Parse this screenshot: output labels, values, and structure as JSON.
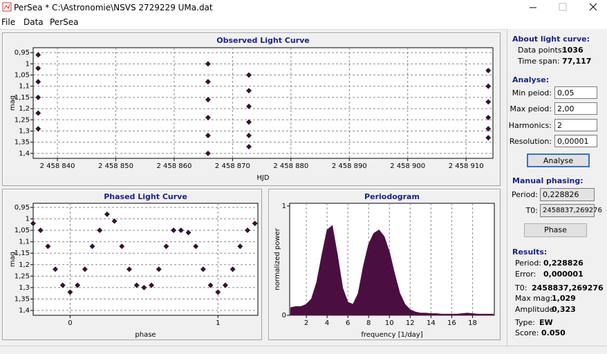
{
  "window": {
    "title": "PerSea * C:\\Astronomie\\NSVS 2729229 UMa.dat"
  },
  "menu": [
    "File",
    "Data",
    "PerSea"
  ],
  "chart_data": [
    {
      "type": "scatter",
      "title": "Observed Light Curve",
      "x_label": "HJD",
      "y_label": "mag",
      "x": [
        2458836.7,
        2458836.7,
        2458836.7,
        2458836.7,
        2458836.7,
        2458836.7,
        2458865.8,
        2458865.8,
        2458865.8,
        2458865.8,
        2458865.8,
        2458865.8,
        2458872.8,
        2458872.8,
        2458872.8,
        2458872.8,
        2458872.8,
        2458872.8,
        2458913.8,
        2458913.8,
        2458913.8,
        2458913.8,
        2458913.8,
        2458913.8
      ],
      "values": [
        0.96,
        1.02,
        1.08,
        1.15,
        1.22,
        1.29,
        1.0,
        1.08,
        1.16,
        1.24,
        1.32,
        1.4,
        1.05,
        1.12,
        1.19,
        1.26,
        1.32,
        1.37,
        1.03,
        1.1,
        1.17,
        1.24,
        1.29,
        1.33
      ],
      "color": "#3a1230",
      "xlim": [
        2458835.85,
        2458914.6
      ],
      "xticks": [
        {
          "value": 2458840,
          "label": "2 458 840"
        },
        {
          "value": 2458850,
          "label": "2 458 850"
        },
        {
          "value": 2458860,
          "label": "2 458 860"
        },
        {
          "value": 2458870,
          "label": "2 458 870"
        },
        {
          "value": 2458880,
          "label": "2 458 880"
        },
        {
          "value": 2458890,
          "label": "2 458 890"
        },
        {
          "value": 2458900,
          "label": "2 458 900"
        },
        {
          "value": 2458910,
          "label": "2 458 910"
        }
      ],
      "ylim": [
        0.928,
        1.422
      ],
      "y_inverted": true,
      "yticks": [
        {
          "value": 0.95,
          "label": "0,95"
        },
        1,
        {
          "value": 1.05,
          "label": "1,05"
        },
        {
          "value": 1.1,
          "label": "1,1"
        },
        {
          "value": 1.15,
          "label": "1,15"
        },
        {
          "value": 1.2,
          "label": "1,2"
        },
        {
          "value": 1.25,
          "label": "1,25"
        },
        {
          "value": 1.3,
          "label": "1,3"
        },
        {
          "value": 1.35,
          "label": "1,35"
        },
        {
          "value": 1.4,
          "label": "1,4"
        }
      ],
      "grid": "both"
    },
    {
      "type": "scatter",
      "title": "Phased Light Curve",
      "x_label": "phase",
      "y_label": "mag",
      "x": [
        -0.25,
        -0.2,
        -0.15,
        -0.1,
        -0.05,
        0,
        0.05,
        0.1,
        0.15,
        0.2,
        0.25,
        0.3,
        0.35,
        0.4,
        0.45,
        0.5,
        0.55,
        0.6,
        0.65,
        0.7,
        0.75,
        0.8,
        0.85,
        0.9,
        0.95,
        1,
        1.05,
        1.1,
        1.15,
        1.2,
        1.25
      ],
      "values": [
        1.02,
        1.05,
        1.12,
        1.22,
        1.29,
        1.32,
        1.29,
        1.22,
        1.12,
        1.05,
        0.98,
        1.01,
        1.12,
        1.22,
        1.29,
        1.3,
        1.29,
        1.22,
        1.12,
        1.05,
        1.05,
        1.06,
        1.12,
        1.22,
        1.29,
        1.32,
        1.29,
        1.22,
        1.12,
        1.05,
        1.02
      ],
      "color": "#3a1230",
      "xlim": [
        -0.25,
        1.27
      ],
      "xticks": [
        0,
        1
      ],
      "ylim": [
        0.932,
        1.421
      ],
      "y_inverted": true,
      "yticks": [
        {
          "value": 0.95,
          "label": "0,95"
        },
        1,
        {
          "value": 1.05,
          "label": "1,05"
        },
        {
          "value": 1.1,
          "label": "1,1"
        },
        {
          "value": 1.15,
          "label": "1,15"
        },
        {
          "value": 1.2,
          "label": "1,2"
        },
        {
          "value": 1.25,
          "label": "1,25"
        },
        {
          "value": 1.3,
          "label": "1,3"
        },
        {
          "value": 1.35,
          "label": "1,35"
        },
        {
          "value": 1.4,
          "label": "1,4"
        }
      ],
      "grid": "both"
    },
    {
      "type": "area",
      "title": "Periodogram",
      "x_label": "frequency [1/day]",
      "y_label": "normalized power",
      "x": [
        0.5,
        1,
        1.5,
        2,
        2.5,
        3,
        3.5,
        4,
        4.5,
        5,
        5.5,
        6,
        6.5,
        7,
        7.5,
        8,
        8.5,
        9,
        9.5,
        10,
        10.5,
        11,
        11.5,
        12,
        12.5,
        13,
        13.5,
        14,
        14.5,
        15,
        15.5,
        16,
        16.5,
        17,
        17.5,
        18,
        18.5,
        19,
        19.5,
        20
      ],
      "values": [
        0.07,
        0.08,
        0.08,
        0.1,
        0.15,
        0.3,
        0.55,
        0.78,
        0.82,
        0.55,
        0.25,
        0.12,
        0.1,
        0.2,
        0.45,
        0.65,
        0.75,
        0.78,
        0.72,
        0.58,
        0.38,
        0.2,
        0.1,
        0.05,
        0.03,
        0.02,
        0.02,
        0.015,
        0.015,
        0.01,
        0.01,
        0.01,
        0.01,
        0.015,
        0.02,
        0.015,
        0.01,
        0.01,
        0.01,
        0.01
      ],
      "color": "#4a0f40",
      "xlim": [
        0.4,
        20.1
      ],
      "xticks": [
        2,
        4,
        6,
        8,
        10,
        12,
        14,
        16,
        18
      ],
      "ylim": [
        0,
        1.025
      ],
      "yticks": [
        0,
        1
      ],
      "grid": "x"
    }
  ],
  "sidebar": {
    "about": {
      "heading": "About light curve:",
      "data_points_label": "Data points:",
      "data_points": 1036,
      "time_span_label": "Time span:",
      "time_span": "77,117"
    },
    "analyse": {
      "heading": "Analyse:",
      "min_period_label": "Min peiod:",
      "min_period": "0,05",
      "max_period_label": "Max peiod:",
      "max_period": "2,00",
      "harmonics_label": "Harmonics:",
      "harmonics": 2,
      "resolution_label": "Resolution:",
      "resolution": "0,00001",
      "button": "Analyse"
    },
    "manual": {
      "heading": "Manual phasing:",
      "period_label": "Period:",
      "period": "0,228826",
      "t0_label": "T0:",
      "t0": "2458837,269276",
      "button": "Phase"
    },
    "results": {
      "heading": "Results:",
      "period_label": "Period:",
      "period": "0,228826",
      "error_label": "Error:",
      "error": "0,000001",
      "t0_label": "T0:",
      "t0": "2458837,269276",
      "max_mag_label": "Max mag:",
      "max_mag": "1,029",
      "amplitude_label": "Amplitude",
      "amplitude": "0,323",
      "type_label": "Type:",
      "type": "EW",
      "score_label": "Score:",
      "score": "0.050"
    }
  }
}
